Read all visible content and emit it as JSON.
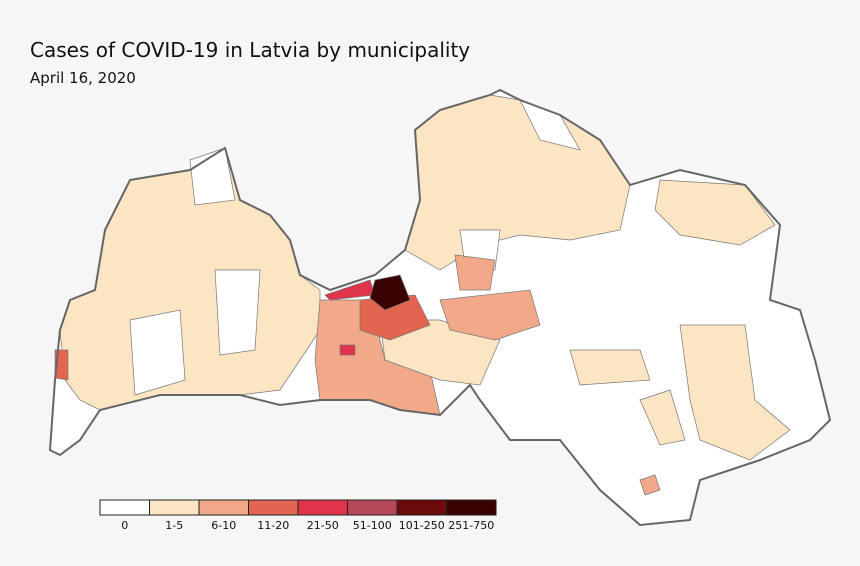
{
  "title": "Cases of COVID-19 in Latvia by municipality",
  "subtitle": "April 16, 2020",
  "legend": {
    "bins": [
      {
        "label": "0",
        "color": "#ffffff"
      },
      {
        "label": "1-5",
        "color": "#fce5c2"
      },
      {
        "label": "6-10",
        "color": "#f2a98a"
      },
      {
        "label": "11-20",
        "color": "#e3654f"
      },
      {
        "label": "21-50",
        "color": "#e0344a"
      },
      {
        "label": "51-100",
        "color": "#b5495a"
      },
      {
        "label": "101-250",
        "color": "#6b0b0b"
      },
      {
        "label": "251-750",
        "color": "#3a0303"
      }
    ]
  }
}
